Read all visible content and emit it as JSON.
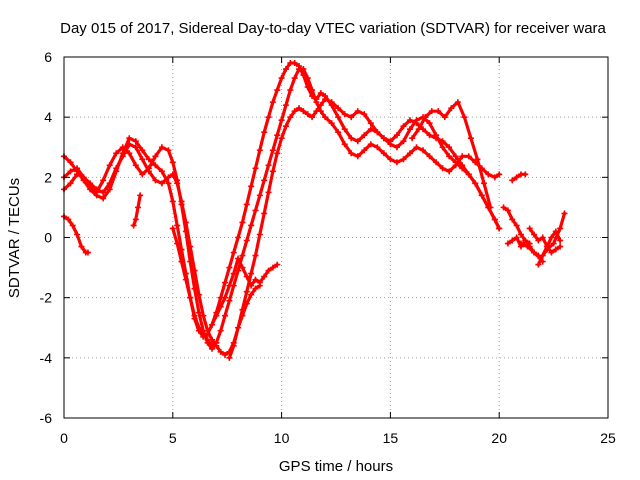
{
  "chart_data": {
    "type": "scatter",
    "title": "Day 015 of 2017, Sidereal Day-to-day VTEC variation (SDTVAR) for receiver wara",
    "xlabel": "GPS time / hours",
    "ylabel": "SDTVAR / TECUs",
    "xlim": [
      0,
      25
    ],
    "ylim": [
      -6,
      6
    ],
    "xticks": [
      0,
      5,
      10,
      15,
      20,
      25
    ],
    "yticks": [
      -6,
      -4,
      -2,
      0,
      2,
      4,
      6
    ],
    "xtick_labels": [
      "0",
      "5",
      "10",
      "15",
      "20",
      "25"
    ],
    "ytick_labels": [
      "-6",
      "-4",
      "-2",
      "0",
      "2",
      "4",
      "6"
    ],
    "grid": true,
    "marker": "plus",
    "color": "#ff0000",
    "series": [
      {
        "x": [
          0.0,
          0.3,
          0.6,
          0.9,
          1.2,
          1.5,
          1.8,
          2.1,
          2.4,
          2.7,
          3.0,
          3.3,
          3.6,
          3.9,
          4.2,
          4.5,
          4.8,
          5.0,
          5.2,
          5.4,
          5.6,
          5.8,
          6.0,
          6.2,
          6.4,
          6.6,
          6.8,
          7.0,
          7.2,
          7.4,
          7.6,
          7.8,
          8.0,
          8.2,
          8.4,
          8.6,
          8.8,
          9.0,
          9.2,
          9.4,
          9.6,
          9.8,
          10.0,
          10.2,
          10.4,
          10.6,
          10.8,
          11.0,
          11.2,
          11.4,
          11.6,
          11.8,
          12.0,
          12.3,
          12.6,
          12.9,
          13.2,
          13.5,
          13.8,
          14.1,
          14.4,
          14.7,
          15.0,
          15.3,
          15.6,
          15.9,
          16.2,
          16.5,
          16.8,
          17.1,
          17.4,
          17.7,
          18.0,
          18.3,
          18.6,
          18.9,
          19.2,
          19.5,
          19.8,
          20.0
        ],
        "y": [
          2.7,
          2.5,
          2.2,
          1.9,
          1.6,
          1.4,
          1.3,
          1.6,
          2.2,
          2.8,
          3.3,
          3.2,
          2.9,
          2.6,
          2.4,
          2.2,
          1.8,
          1.2,
          0.4,
          -0.4,
          -1.2,
          -2.0,
          -2.7,
          -3.1,
          -3.3,
          -3.2,
          -2.9,
          -2.5,
          -2.0,
          -1.5,
          -1.0,
          -0.5,
          0.0,
          0.5,
          1.1,
          1.7,
          2.3,
          2.9,
          3.5,
          4.0,
          4.5,
          4.9,
          5.3,
          5.6,
          5.8,
          5.8,
          5.7,
          5.4,
          5.0,
          4.7,
          4.6,
          4.8,
          4.7,
          4.4,
          4.0,
          3.6,
          3.3,
          3.2,
          3.4,
          3.6,
          3.5,
          3.3,
          3.1,
          3.0,
          3.2,
          3.6,
          3.9,
          4.0,
          3.8,
          3.4,
          3.0,
          2.7,
          2.5,
          2.3,
          2.1,
          1.8,
          1.4,
          1.0,
          0.6,
          0.3
        ]
      },
      {
        "x": [
          0.0,
          0.3,
          0.6,
          0.9,
          1.2,
          1.5,
          1.8,
          2.1,
          2.4,
          2.7,
          3.0,
          3.3,
          3.6,
          3.9,
          4.2,
          4.5,
          4.8,
          5.0,
          5.2,
          5.4,
          5.6,
          5.8,
          6.0,
          6.2,
          6.4,
          6.6,
          6.8,
          7.0,
          7.2,
          7.4,
          7.6,
          7.8,
          8.0,
          8.2,
          8.4,
          8.6,
          8.8,
          9.0,
          9.2,
          9.4,
          9.6,
          9.8,
          10.0,
          10.2,
          10.4,
          10.6,
          10.8,
          11.0,
          11.2,
          11.4,
          11.6,
          11.8,
          12.0,
          12.3,
          12.6,
          12.9,
          13.2,
          13.5,
          13.8,
          14.1,
          14.4,
          14.7,
          15.0,
          15.3,
          15.6,
          15.9,
          16.2,
          16.5,
          16.8,
          17.1,
          17.4,
          17.7,
          18.0,
          18.3,
          18.6,
          18.9,
          19.2,
          19.5,
          19.8,
          20.0
        ],
        "y": [
          2.0,
          2.2,
          2.3,
          2.0,
          1.7,
          1.5,
          1.9,
          2.4,
          2.8,
          3.0,
          2.8,
          2.4,
          2.1,
          2.3,
          2.7,
          3.0,
          2.9,
          2.5,
          1.9,
          1.1,
          0.2,
          -0.8,
          -1.7,
          -2.5,
          -3.1,
          -3.5,
          -3.7,
          -3.5,
          -3.1,
          -2.6,
          -2.1,
          -1.6,
          -1.1,
          -0.6,
          -0.1,
          0.4,
          0.9,
          1.4,
          1.9,
          2.4,
          2.9,
          3.4,
          3.9,
          4.4,
          4.9,
          5.3,
          5.6,
          5.6,
          5.3,
          4.9,
          4.5,
          4.2,
          4.0,
          3.8,
          3.5,
          3.1,
          2.8,
          2.7,
          2.9,
          3.1,
          3.0,
          2.8,
          2.6,
          2.5,
          2.6,
          2.8,
          3.0,
          2.9,
          2.7,
          2.5,
          2.3,
          2.2,
          2.4,
          2.7,
          2.7,
          2.5,
          2.3,
          2.1,
          2.0,
          2.1
        ]
      },
      {
        "x": [
          0.0,
          0.3,
          0.6,
          0.9,
          1.2,
          1.5,
          1.8,
          2.1,
          2.4,
          2.7,
          3.0,
          3.3,
          3.6,
          3.9,
          4.2,
          4.5,
          4.8,
          5.0,
          5.2,
          5.4,
          5.6,
          5.8,
          6.0,
          6.2,
          6.4,
          6.6,
          6.8,
          7.0,
          7.2,
          7.4,
          7.6,
          7.8,
          8.0,
          8.2,
          8.4,
          8.6,
          8.8,
          9.0,
          9.2,
          9.4,
          9.6,
          9.8,
          10.0,
          10.2,
          10.4,
          10.6,
          10.8,
          11.0,
          11.2,
          11.4,
          11.6,
          11.8,
          12.0,
          12.3,
          12.6,
          12.9,
          13.2,
          13.5,
          13.8,
          14.1,
          14.4,
          14.7,
          15.0,
          15.3,
          15.6,
          15.9,
          16.2,
          16.5,
          16.8,
          17.1,
          17.4,
          17.7,
          18.0,
          18.3,
          18.6,
          18.9,
          19.2,
          19.5,
          19.8,
          20.0
        ],
        "y": [
          1.6,
          1.8,
          2.1,
          2.0,
          1.8,
          1.6,
          1.5,
          1.8,
          2.3,
          2.7,
          3.1,
          3.0,
          2.6,
          2.2,
          1.9,
          1.8,
          2.0,
          2.1,
          1.8,
          1.2,
          0.5,
          -0.3,
          -1.1,
          -1.9,
          -2.6,
          -3.1,
          -3.4,
          -3.6,
          -3.8,
          -3.9,
          -3.8,
          -3.5,
          -3.0,
          -2.4,
          -1.8,
          -1.2,
          -0.6,
          0.1,
          0.8,
          1.5,
          2.2,
          2.8,
          3.3,
          3.7,
          4.0,
          4.2,
          4.3,
          4.2,
          4.1,
          4.0,
          4.2,
          4.4,
          4.6,
          4.5,
          4.3,
          4.1,
          4.0,
          4.2,
          4.1,
          3.8,
          3.5,
          3.3,
          3.2,
          3.4,
          3.7,
          3.9,
          3.8,
          3.6,
          3.4,
          3.3,
          3.2,
          3.0,
          2.7,
          2.4,
          2.1,
          1.8,
          1.4,
          1.0,
          0.6,
          0.3
        ]
      },
      {
        "x": [
          0.0,
          0.2,
          0.4,
          0.6,
          0.8,
          1.0,
          1.1
        ],
        "y": [
          0.7,
          0.6,
          0.4,
          0.1,
          -0.3,
          -0.5,
          -0.5
        ]
      },
      {
        "x": [
          3.2,
          3.3,
          3.4,
          3.5
        ],
        "y": [
          0.4,
          0.6,
          1.0,
          1.4
        ]
      },
      {
        "x": [
          5.0,
          5.2,
          5.4,
          5.6,
          5.8,
          6.0,
          6.2,
          6.4,
          6.6,
          6.8,
          7.0
        ],
        "y": [
          0.3,
          -0.2,
          -0.8,
          -1.4,
          -2.0,
          -2.6,
          -3.0,
          -3.2,
          -3.4,
          -3.6,
          -3.5
        ]
      },
      {
        "x": [
          6.8,
          7.0,
          7.2,
          7.4,
          7.6,
          7.8,
          8.0,
          8.2,
          8.4,
          8.6,
          8.8,
          9.0,
          9.2,
          9.4,
          9.6,
          9.8
        ],
        "y": [
          -2.9,
          -2.6,
          -2.3,
          -2.0,
          -1.6,
          -1.2,
          -0.7,
          -1.0,
          -1.3,
          -1.6,
          -1.4,
          -1.5,
          -1.3,
          -1.1,
          -1.0,
          -0.9
        ]
      },
      {
        "x": [
          7.6,
          7.8,
          8.0,
          8.2,
          8.4,
          8.6,
          8.8,
          9.0
        ],
        "y": [
          -4.0,
          -3.6,
          -3.0,
          -2.6,
          -2.2,
          -1.9,
          -1.7,
          -1.6
        ]
      },
      {
        "x": [
          16.0,
          16.3,
          16.6,
          16.9,
          17.2,
          17.5,
          17.8,
          18.1,
          18.4,
          18.7,
          19.0,
          19.3,
          19.6
        ],
        "y": [
          3.3,
          3.6,
          4.0,
          4.2,
          4.2,
          4.0,
          4.3,
          4.5,
          4.0,
          3.3,
          2.6,
          1.8,
          1.0
        ]
      },
      {
        "x": [
          20.2,
          20.4,
          20.6,
          20.8,
          21.0,
          21.2,
          21.4,
          21.6,
          21.8,
          22.0
        ],
        "y": [
          1.0,
          0.9,
          0.6,
          0.4,
          0.1,
          -0.1,
          -0.3,
          -0.5,
          -0.6,
          -0.8
        ]
      },
      {
        "x": [
          20.4,
          20.6,
          20.8,
          21.0,
          21.2,
          21.4
        ],
        "y": [
          -0.2,
          -0.1,
          0.0,
          -0.3,
          -0.1,
          -0.2
        ]
      },
      {
        "x": [
          20.6,
          20.8,
          21.0,
          21.2
        ],
        "y": [
          1.9,
          2.0,
          2.1,
          2.1
        ]
      },
      {
        "x": [
          21.0,
          21.3,
          21.6,
          21.9,
          22.2,
          22.5,
          22.8,
          23.0
        ],
        "y": [
          -0.2,
          -0.3,
          -0.5,
          -0.7,
          -0.4,
          -0.2,
          0.3,
          0.8
        ]
      },
      {
        "x": [
          21.4,
          21.6,
          21.8,
          22.0,
          22.2,
          22.4,
          22.6,
          22.8
        ],
        "y": [
          0.3,
          0.1,
          -0.1,
          0.0,
          -0.3,
          -0.5,
          -0.4,
          -0.3
        ]
      },
      {
        "x": [
          21.8,
          22.0,
          22.2,
          22.4,
          22.6,
          22.8
        ],
        "y": [
          -0.9,
          -0.6,
          -0.3,
          0.0,
          0.2,
          -0.1
        ]
      }
    ]
  }
}
